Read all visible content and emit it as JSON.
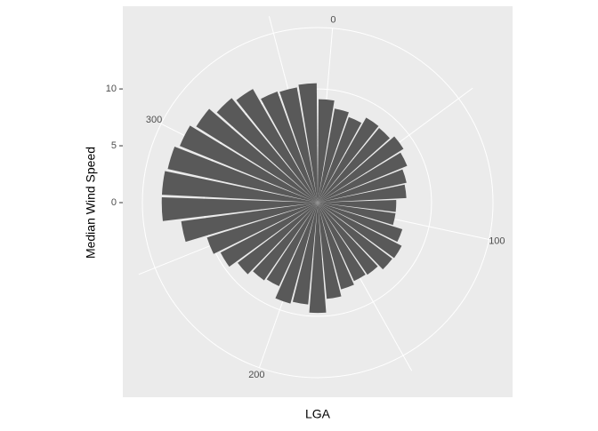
{
  "chart_data": {
    "type": "bar",
    "coord": "polar",
    "x_label": "LGA",
    "y_label": "Median Wind Speed",
    "x": [
      0,
      10,
      20,
      30,
      40,
      50,
      60,
      70,
      80,
      90,
      100,
      110,
      120,
      130,
      140,
      150,
      160,
      170,
      180,
      190,
      200,
      210,
      220,
      230,
      240,
      250,
      260,
      270,
      280,
      290,
      300,
      310,
      320,
      330,
      340,
      350,
      360
    ],
    "values": [
      9.1,
      8.4,
      8.0,
      8.6,
      8.5,
      8.9,
      8.5,
      8.0,
      7.8,
      6.9,
      6.9,
      7.8,
      8.3,
      8.2,
      7.7,
      7.6,
      7.9,
      8.5,
      9.7,
      9.0,
      9.2,
      8.1,
      8.3,
      8.8,
      9.6,
      10.2,
      12.1,
      13.7,
      13.7,
      13.5,
      13.1,
      12.6,
      11.9,
      11.5,
      10.4,
      10.3,
      10.5
    ],
    "color": "#595959",
    "xlim": [
      -5,
      365
    ],
    "xticks": [
      0,
      100,
      200,
      300
    ],
    "xminor": [
      50,
      150,
      250,
      350
    ],
    "ylim": [
      0,
      15.4
    ],
    "yticks": [
      0,
      5,
      10
    ],
    "grid": true
  }
}
